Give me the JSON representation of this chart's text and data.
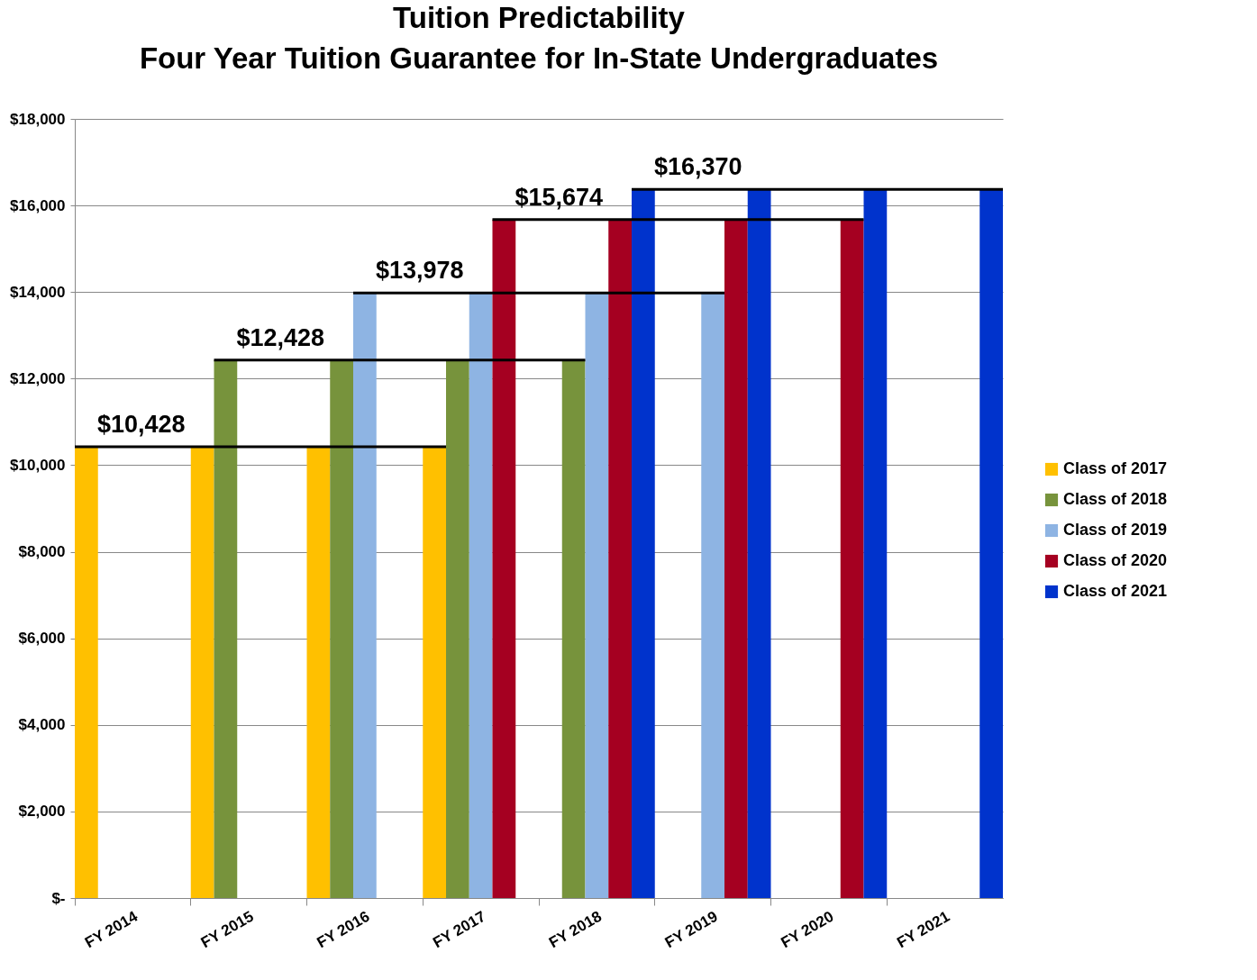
{
  "chart_data": {
    "type": "bar",
    "title": "Tuition Predictability",
    "subtitle": "Four Year Tuition Guarantee for In-State Undergraduates",
    "categories": [
      "FY 2014",
      "FY 2015",
      "FY 2016",
      "FY 2017",
      "FY 2018",
      "FY 2019",
      "FY 2020",
      "FY 2021"
    ],
    "series": [
      {
        "name": "Class of 2017",
        "color": "#ffc000",
        "values": [
          10428,
          10428,
          10428,
          10428,
          null,
          null,
          null,
          null
        ]
      },
      {
        "name": "Class of 2018",
        "color": "#77933c",
        "values": [
          null,
          12428,
          12428,
          12428,
          12428,
          null,
          null,
          null
        ]
      },
      {
        "name": "Class of 2019",
        "color": "#8eb4e3",
        "values": [
          null,
          null,
          13978,
          13978,
          13978,
          13978,
          null,
          null
        ]
      },
      {
        "name": "Class of 2020",
        "color": "#a50021",
        "values": [
          null,
          null,
          null,
          15674,
          15674,
          15674,
          15674,
          null
        ]
      },
      {
        "name": "Class of 2021",
        "color": "#0033cc",
        "values": [
          null,
          null,
          null,
          null,
          16370,
          16370,
          16370,
          16370
        ]
      }
    ],
    "annotations": [
      "$10,428",
      "$12,428",
      "$13,978",
      "$15,674",
      "$16,370"
    ],
    "ylim": [
      0,
      18000
    ],
    "yticks": [
      {
        "value": 0,
        "label": "$-"
      },
      {
        "value": 2000,
        "label": "$2,000"
      },
      {
        "value": 4000,
        "label": "$4,000"
      },
      {
        "value": 6000,
        "label": "$6,000"
      },
      {
        "value": 8000,
        "label": "$8,000"
      },
      {
        "value": 10000,
        "label": "$10,000"
      },
      {
        "value": 12000,
        "label": "$12,000"
      },
      {
        "value": 14000,
        "label": "$14,000"
      },
      {
        "value": 16000,
        "label": "$16,000"
      },
      {
        "value": 18000,
        "label": "$18,000"
      }
    ],
    "grid": "y",
    "legend": "right"
  }
}
